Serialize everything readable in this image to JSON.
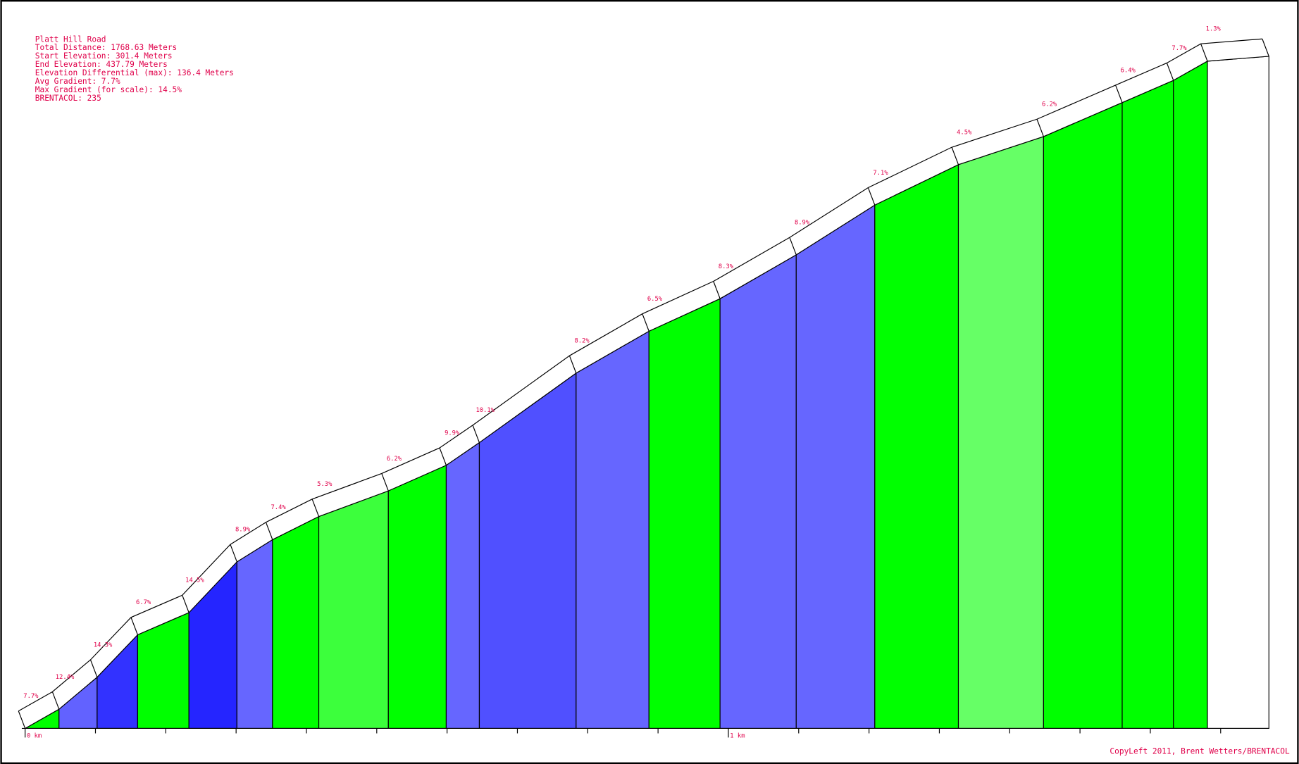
{
  "chart_data": {
    "type": "profile",
    "title": "Platt Hill Road",
    "info": [
      "Total Distance: 1768.63 Meters",
      "Start Elevation: 301.4 Meters",
      "End Elevation: 437.79 Meters",
      "Elevation Differential (max): 136.4 Meters",
      "Avg Gradient: 7.7%",
      "Max Gradient (for scale): 14.5%",
      "BRENTACOL: 235"
    ],
    "x": [
      0,
      48.2,
      102.4,
      160,
      232.9,
      301.2,
      351.8,
      417.6,
      516.5,
      598.8,
      645.9,
      783.5,
      887.1,
      988.2,
      1096.5,
      1208.2,
      1327.1,
      1448.2,
      1560,
      1632.9,
      1681.2,
      1768.63
    ],
    "values": [
      301.4,
      305.3,
      311.8,
      320.4,
      324.9,
      335.2,
      339.7,
      344.4,
      349.6,
      354.8,
      359.4,
      373.5,
      382.0,
      388.6,
      397.5,
      407.6,
      415.8,
      421.5,
      428.4,
      432.9,
      436.8,
      437.79
    ],
    "segments": {
      "values": [
        7.7,
        12.4,
        14.3,
        6.7,
        14.5,
        8.9,
        7.4,
        5.3,
        6.2,
        9.9,
        10.1,
        8.2,
        6.5,
        8.3,
        8.9,
        7.1,
        4.5,
        6.2,
        6.4,
        7.7,
        1.3
      ],
      "value_labels": [
        "7.7%",
        "12.4%",
        "14.3%",
        "6.7%",
        "14.5%",
        "8.9%",
        "7.4%",
        "5.3%",
        "6.2%",
        "9.9%",
        "10.1%",
        "8.2%",
        "6.5%",
        "8.3%",
        "8.9%",
        "7.1%",
        "4.5%",
        "6.2%",
        "6.4%",
        "7.7%",
        "1.3%"
      ],
      "colors": [
        "#00ff00",
        "#6262ff",
        "#3232ff",
        "#00ff00",
        "#2525ff",
        "#6666ff",
        "#00ff00",
        "#3cff3c",
        "#00ff00",
        "#6666ff",
        "#5050ff",
        "#6666ff",
        "#00ff00",
        "#6666ff",
        "#6666ff",
        "#00ff00",
        "#66ff66",
        "#00ff00",
        "#00ff00",
        "#00ff00",
        "#ffffff"
      ]
    },
    "xlim": [
      0,
      1768.63
    ],
    "ylim": [
      301.4,
      437.79
    ],
    "xticks": [
      {
        "value": 0,
        "label": "0 km"
      },
      {
        "value": 1000,
        "label": "1 km"
      }
    ],
    "minor_xticks": [
      100,
      200,
      300,
      400,
      500,
      600,
      700,
      800,
      900,
      1100,
      1200,
      1300,
      1400,
      1500,
      1600,
      1700
    ],
    "footer": "CopyLeft 2011, Brent Wetters/BRENTACOL"
  }
}
